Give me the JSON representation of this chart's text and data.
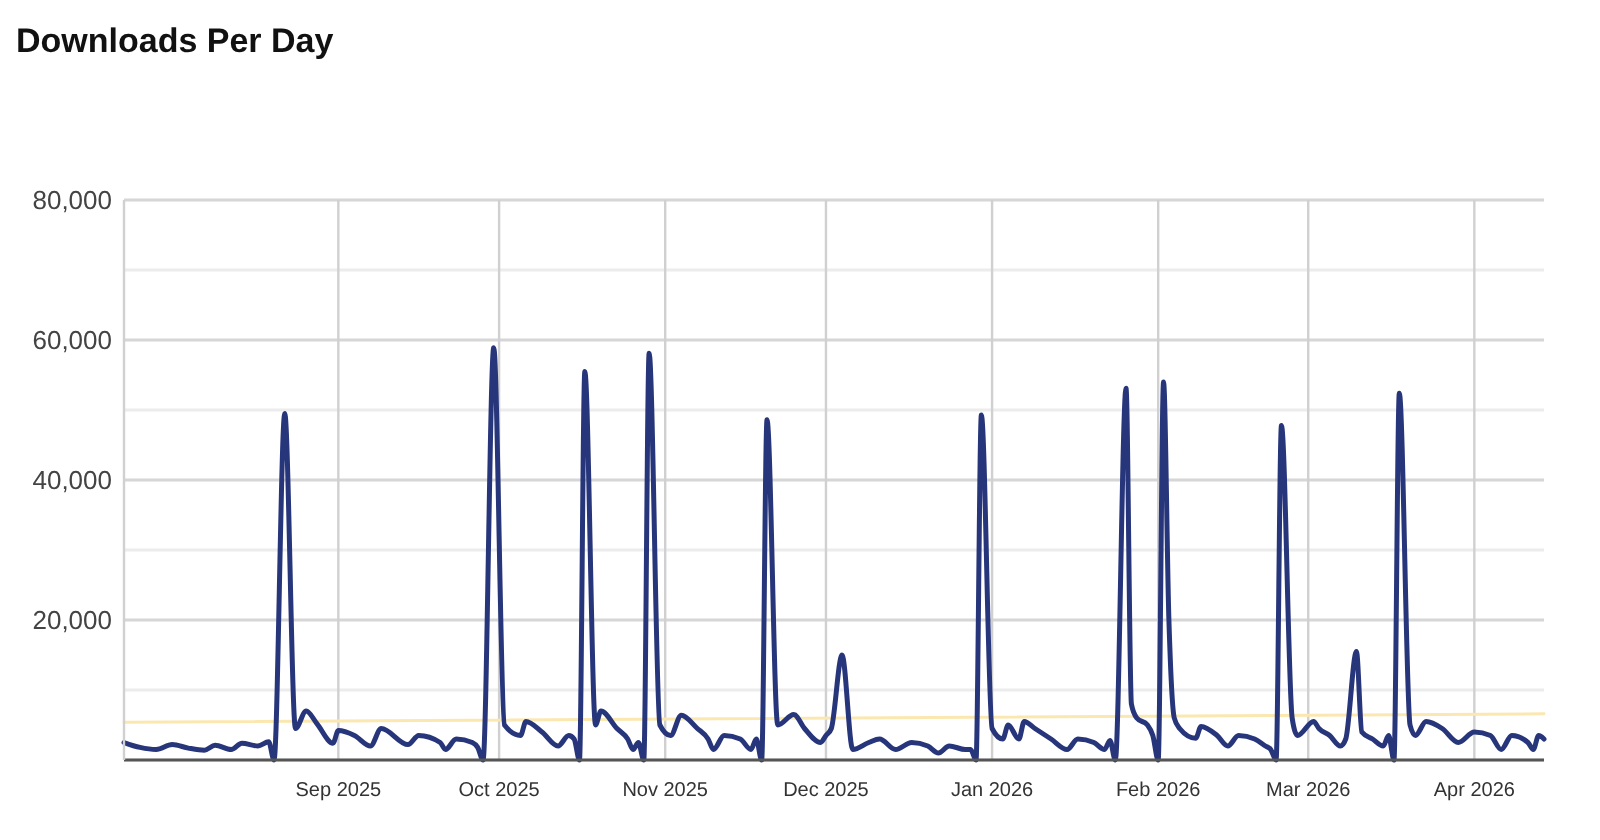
{
  "chart_data": {
    "type": "line",
    "title": "Downloads Per Day",
    "xlim": [
      "2025-07-23",
      "2026-04-14"
    ],
    "xticks": [
      {
        "value": "2025-09-01",
        "label": "Sep 2025"
      },
      {
        "value": "2025-10-01",
        "label": "Oct 2025"
      },
      {
        "value": "2025-11-01",
        "label": "Nov 2025"
      },
      {
        "value": "2025-12-01",
        "label": "Dec 2025"
      },
      {
        "value": "2026-01-01",
        "label": "Jan 2026"
      },
      {
        "value": "2026-02-01",
        "label": "Feb 2026"
      },
      {
        "value": "2026-03-01",
        "label": "Mar 2026"
      },
      {
        "value": "2026-04-01",
        "label": "Apr 2026"
      }
    ],
    "ylim": [
      0,
      80000
    ],
    "yticks": [
      {
        "value": 0,
        "label": null
      },
      {
        "value": 10000,
        "label": null
      },
      {
        "value": 20000,
        "label": "20,000"
      },
      {
        "value": 30000,
        "label": null
      },
      {
        "value": 40000,
        "label": "40,000"
      },
      {
        "value": 50000,
        "label": null
      },
      {
        "value": 60000,
        "label": "60,000"
      },
      {
        "value": 70000,
        "label": null
      },
      {
        "value": 80000,
        "label": "80,000"
      }
    ],
    "grid": true,
    "series": [
      {
        "color": "#fbe7b0",
        "type": "line",
        "x": [
          "2025-07-23",
          "2026-04-14"
        ],
        "values": [
          5400,
          6600
        ]
      },
      {
        "color": "#27357a",
        "x": [
          "2025-07-23",
          "2025-07-26",
          "2025-07-29",
          "2025-08-01",
          "2025-08-04",
          "2025-08-07",
          "2025-08-09",
          "2025-08-12",
          "2025-08-14",
          "2025-08-17",
          "2025-08-19",
          "2025-08-20",
          "2025-08-22",
          "2025-08-24",
          "2025-08-26",
          "2025-08-28",
          "2025-08-31",
          "2025-09-01",
          "2025-09-04",
          "2025-09-07",
          "2025-09-09",
          "2025-09-14",
          "2025-09-16",
          "2025-09-20",
          "2025-09-21",
          "2025-09-23",
          "2025-09-26",
          "2025-09-27",
          "2025-09-28",
          "2025-09-30",
          "2025-10-02",
          "2025-10-05",
          "2025-10-06",
          "2025-10-09",
          "2025-10-12",
          "2025-10-14",
          "2025-10-15",
          "2025-10-16",
          "2025-10-17",
          "2025-10-19",
          "2025-10-20",
          "2025-10-23",
          "2025-10-25",
          "2025-10-26",
          "2025-10-27",
          "2025-10-28",
          "2025-10-29",
          "2025-10-31",
          "2025-11-02",
          "2025-11-04",
          "2025-11-07",
          "2025-11-09",
          "2025-11-10",
          "2025-11-12",
          "2025-11-15",
          "2025-11-17",
          "2025-11-18",
          "2025-11-19",
          "2025-11-20",
          "2025-11-22",
          "2025-11-25",
          "2025-11-27",
          "2025-11-30",
          "2025-12-01",
          "2025-12-02",
          "2025-12-04",
          "2025-12-06",
          "2025-12-09",
          "2025-12-11",
          "2025-12-14",
          "2025-12-17",
          "2025-12-20",
          "2025-12-22",
          "2025-12-24",
          "2025-12-27",
          "2025-12-28",
          "2025-12-29",
          "2025-12-30",
          "2026-01-01",
          "2026-01-03",
          "2026-01-04",
          "2026-01-06",
          "2026-01-07",
          "2026-01-09",
          "2026-01-12",
          "2026-01-15",
          "2026-01-17",
          "2026-01-20",
          "2026-01-22",
          "2026-01-23",
          "2026-01-24",
          "2026-01-26",
          "2026-01-27",
          "2026-01-28",
          "2026-01-30",
          "2026-01-31",
          "2026-02-01",
          "2026-02-02",
          "2026-02-03",
          "2026-02-04",
          "2026-02-05",
          "2026-02-08",
          "2026-02-09",
          "2026-02-12",
          "2026-02-14",
          "2026-02-16",
          "2026-02-19",
          "2026-02-21",
          "2026-02-22",
          "2026-02-23",
          "2026-02-24",
          "2026-02-26",
          "2026-02-27",
          "2026-03-02",
          "2026-03-03",
          "2026-03-05",
          "2026-03-07",
          "2026-03-08",
          "2026-03-10",
          "2026-03-11",
          "2026-03-13",
          "2026-03-15",
          "2026-03-16",
          "2026-03-17",
          "2026-03-18",
          "2026-03-20",
          "2026-03-21",
          "2026-03-23",
          "2026-03-26",
          "2026-03-29",
          "2026-04-01",
          "2026-04-04",
          "2026-04-06",
          "2026-04-08",
          "2026-04-11",
          "2026-04-12",
          "2026-04-13",
          "2026-04-14"
        ],
        "values": [
          2500,
          1800,
          1500,
          2200,
          1700,
          1400,
          2100,
          1500,
          2400,
          2000,
          2600,
          0,
          49500,
          4500,
          7000,
          5200,
          2400,
          4200,
          3500,
          2000,
          4500,
          2200,
          3500,
          2500,
          1500,
          3000,
          2500,
          1800,
          0,
          58900,
          5000,
          3500,
          5500,
          4000,
          2000,
          3500,
          3000,
          0,
          55500,
          5000,
          7000,
          4500,
          3000,
          1500,
          2500,
          0,
          58100,
          5000,
          3500,
          6400,
          4500,
          3000,
          1500,
          3500,
          3000,
          1500,
          3000,
          0,
          48600,
          5000,
          6500,
          4500,
          2500,
          3500,
          4500,
          15000,
          1500,
          2500,
          3000,
          1500,
          2500,
          2000,
          1000,
          2000,
          1500,
          1500,
          0,
          49300,
          4500,
          3000,
          5000,
          3000,
          5500,
          4500,
          3000,
          1500,
          3000,
          2500,
          1500,
          2800,
          0,
          53100,
          8000,
          6000,
          5000,
          3500,
          0,
          54000,
          20000,
          6000,
          4500,
          3100,
          4800,
          3500,
          2000,
          3500,
          3000,
          2000,
          1500,
          0,
          47800,
          6000,
          3500,
          5500,
          4500,
          3500,
          2000,
          3000,
          15500,
          4000,
          3000,
          2000,
          3500,
          0,
          52400,
          5000,
          3500,
          5500,
          4500,
          2500,
          4000,
          3500,
          1500,
          3500,
          2500,
          1500,
          3500,
          3000
        ]
      }
    ]
  }
}
